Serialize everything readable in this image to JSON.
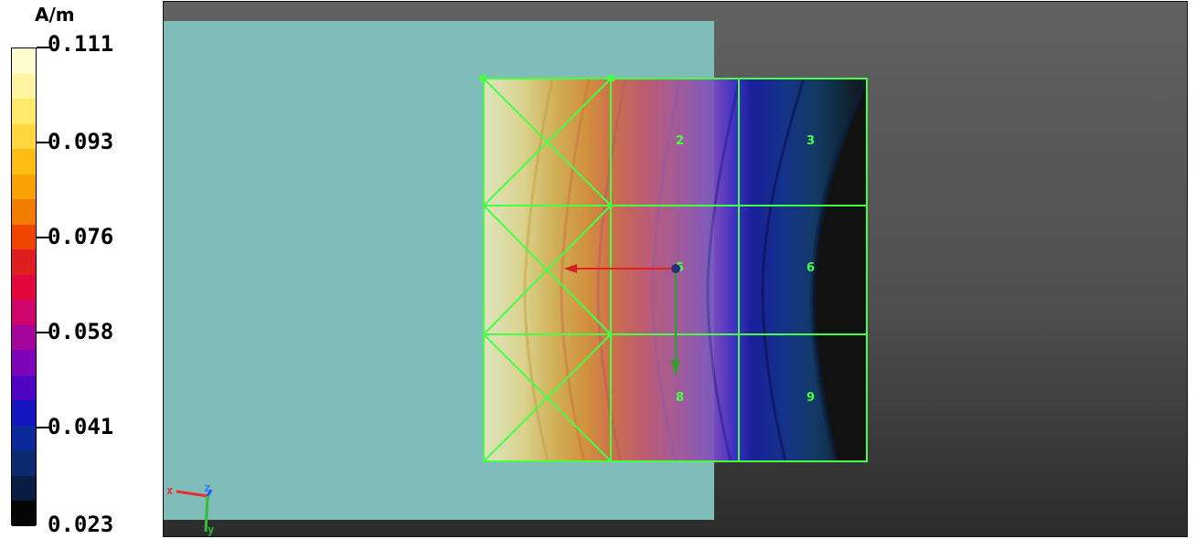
{
  "legend": {
    "unit": "A/m",
    "labels": [
      "0.111",
      "0.093",
      "0.076",
      "0.058",
      "0.041",
      "0.023"
    ],
    "colors": [
      "#fffcd0",
      "#fff4a0",
      "#ffe96b",
      "#fdd640",
      "#fdbd12",
      "#f9a201",
      "#f37d00",
      "#ef4500",
      "#e01e1f",
      "#e3073b",
      "#cd056d",
      "#a5059a",
      "#7e06ba",
      "#5005c4",
      "#1414c0",
      "#0a2a9c",
      "#0b2a70",
      "#0a1e44",
      "#050505"
    ]
  },
  "viewport": {
    "panel_color": "#7fbcba",
    "grid_color": "#44ff44",
    "cell_labels": [
      "2",
      "3",
      "5",
      "6",
      "8",
      "9"
    ],
    "axis_labels": {
      "x": "x",
      "y": "y",
      "z": "z"
    }
  }
}
